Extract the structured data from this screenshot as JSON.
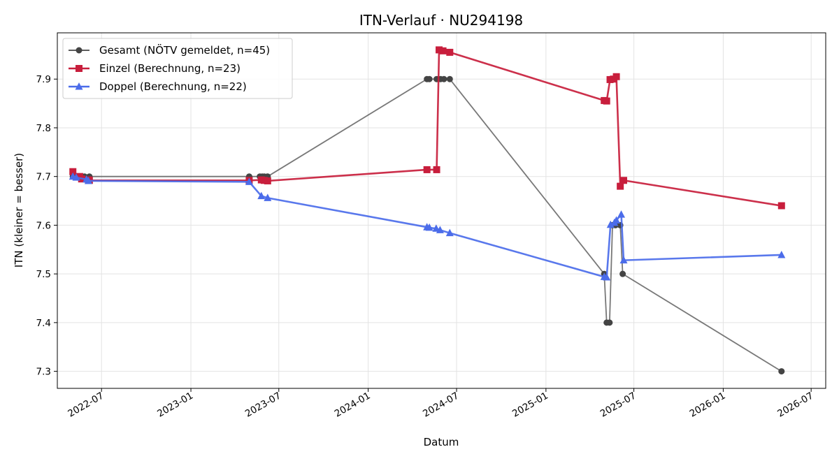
{
  "chart_data": {
    "type": "line",
    "title": "ITN-Verlauf · NU294198",
    "xlabel": "Datum",
    "ylabel": "ITN  (kleiner = besser)",
    "x_type": "date",
    "xlim": [
      "2022-04-01",
      "2026-07-31"
    ],
    "ylim": [
      7.265,
      7.995
    ],
    "x_ticks": [
      "2022-07-01",
      "2023-01-01",
      "2023-07-01",
      "2024-01-01",
      "2024-07-01",
      "2025-01-01",
      "2025-07-01",
      "2026-01-01",
      "2026-07-01"
    ],
    "x_tick_labels": [
      "2022-07",
      "2023-01",
      "2023-07",
      "2024-01",
      "2024-07",
      "2025-01",
      "2025-07",
      "2026-01",
      "2026-07"
    ],
    "y_ticks": [
      7.3,
      7.4,
      7.5,
      7.6,
      7.7,
      7.8,
      7.9
    ],
    "y_tick_labels": [
      "7.3",
      "7.4",
      "7.5",
      "7.6",
      "7.7",
      "7.8",
      "7.9"
    ],
    "grid": true,
    "legend_position": "top-left",
    "series": [
      {
        "name": "Gesamt (NÖTV gemeldet, n=45)",
        "color": "#444444",
        "marker": "circle",
        "points": [
          [
            "2022-05-03",
            7.7
          ],
          [
            "2022-05-06",
            7.7
          ],
          [
            "2022-05-10",
            7.7
          ],
          [
            "2022-05-17",
            7.7
          ],
          [
            "2022-05-27",
            7.7
          ],
          [
            "2022-06-06",
            7.7
          ],
          [
            "2023-05-01",
            7.7
          ],
          [
            "2023-05-23",
            7.7
          ],
          [
            "2023-05-28",
            7.7
          ],
          [
            "2023-06-01",
            7.7
          ],
          [
            "2023-06-08",
            7.7
          ],
          [
            "2024-05-01",
            7.9
          ],
          [
            "2024-05-06",
            7.9
          ],
          [
            "2024-05-21",
            7.9
          ],
          [
            "2024-05-29",
            7.9
          ],
          [
            "2024-06-05",
            7.9
          ],
          [
            "2024-06-17",
            7.9
          ],
          [
            "2025-05-01",
            7.5
          ],
          [
            "2025-05-06",
            7.4
          ],
          [
            "2025-05-12",
            7.4
          ],
          [
            "2025-05-18",
            7.6
          ],
          [
            "2025-05-24",
            7.6
          ],
          [
            "2025-06-03",
            7.6
          ],
          [
            "2025-06-08",
            7.5
          ],
          [
            "2026-05-01",
            7.3
          ]
        ]
      },
      {
        "name": "Einzel (Berechnung, n=23)",
        "color": "#c81e3c",
        "marker": "square",
        "points": [
          [
            "2022-05-03",
            7.71
          ],
          [
            "2022-05-17",
            7.7
          ],
          [
            "2022-05-21",
            7.695
          ],
          [
            "2022-06-04",
            7.693
          ],
          [
            "2022-06-06",
            7.692
          ],
          [
            "2023-05-01",
            7.692
          ],
          [
            "2023-05-26",
            7.693
          ],
          [
            "2023-06-01",
            7.692
          ],
          [
            "2023-06-08",
            7.691
          ],
          [
            "2024-05-01",
            7.714
          ],
          [
            "2024-05-21",
            7.714
          ],
          [
            "2024-05-26",
            7.96
          ],
          [
            "2024-06-03",
            7.958
          ],
          [
            "2024-06-17",
            7.955
          ],
          [
            "2025-05-01",
            7.856
          ],
          [
            "2025-05-06",
            7.855
          ],
          [
            "2025-05-13",
            7.899
          ],
          [
            "2025-05-20",
            7.9
          ],
          [
            "2025-05-26",
            7.905
          ],
          [
            "2025-06-03",
            7.68
          ],
          [
            "2025-06-10",
            7.692
          ],
          [
            "2026-05-01",
            7.64
          ]
        ]
      },
      {
        "name": "Doppel (Berechnung, n=22)",
        "color": "#4b6cea",
        "marker": "triangle",
        "points": [
          [
            "2022-05-03",
            7.7
          ],
          [
            "2022-05-10",
            7.698
          ],
          [
            "2022-05-31",
            7.694
          ],
          [
            "2022-06-04",
            7.691
          ],
          [
            "2023-05-01",
            7.689
          ],
          [
            "2023-05-26",
            7.66
          ],
          [
            "2023-06-08",
            7.656
          ],
          [
            "2024-05-01",
            7.596
          ],
          [
            "2024-05-06",
            7.595
          ],
          [
            "2024-05-20",
            7.593
          ],
          [
            "2024-05-28",
            7.59
          ],
          [
            "2024-06-17",
            7.584
          ],
          [
            "2025-05-01",
            7.494
          ],
          [
            "2025-05-06",
            7.493
          ],
          [
            "2025-05-14",
            7.601
          ],
          [
            "2025-05-22",
            7.605
          ],
          [
            "2025-05-26",
            7.61
          ],
          [
            "2025-06-05",
            7.622
          ],
          [
            "2025-06-10",
            7.528
          ],
          [
            "2026-05-01",
            7.539
          ]
        ]
      }
    ]
  }
}
